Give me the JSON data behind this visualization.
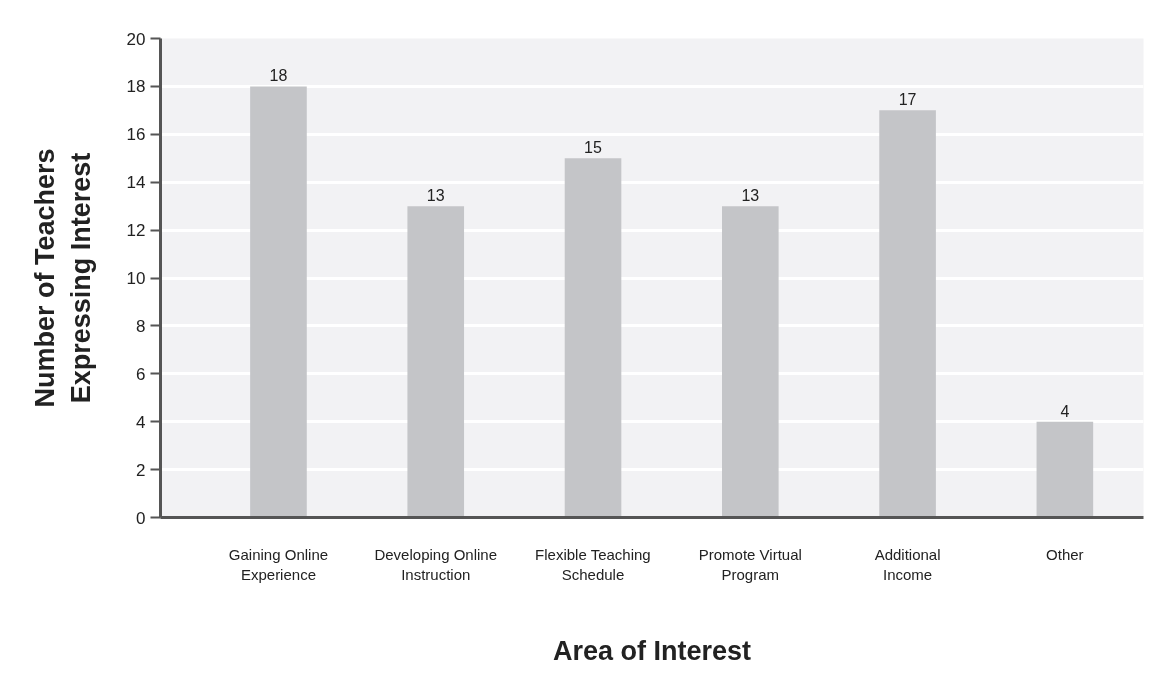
{
  "chart_data": {
    "type": "bar",
    "xlabel": "Area of Interest",
    "ylabel": "Number of Teachers Expressing Interest",
    "categories": [
      "Gaining Online Experience",
      "Developing Online Instruction",
      "Flexible Teaching Schedule",
      "Promote Virtual Program",
      "Additional Income",
      "Other"
    ],
    "values": [
      18,
      13,
      15,
      13,
      17,
      4
    ],
    "color": "#c4c5c8",
    "ylim": [
      0,
      20
    ],
    "yticks": [
      0,
      2,
      4,
      6,
      8,
      10,
      12,
      14,
      16,
      18,
      20
    ],
    "grid": "y",
    "data_labels": true
  }
}
